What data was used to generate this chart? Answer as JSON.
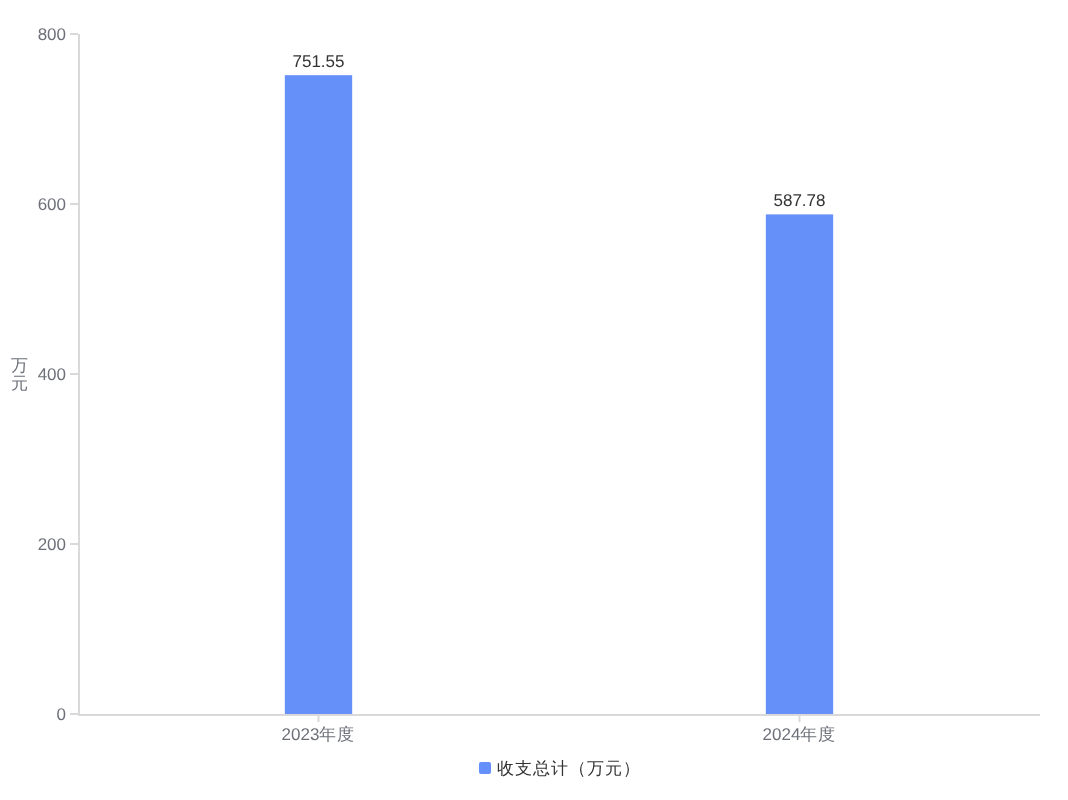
{
  "chart_data": {
    "type": "bar",
    "ylabel": "万元",
    "categories": [
      "2023年度",
      "2024年度"
    ],
    "series": [
      {
        "name": "收支总计（万元）",
        "color": "#6690f9",
        "values": [
          751.55,
          587.78
        ]
      }
    ],
    "ylim": [
      0,
      800
    ],
    "yticks": [
      0,
      200,
      400,
      600,
      800
    ],
    "legend": "bottom",
    "data_labels": true
  }
}
